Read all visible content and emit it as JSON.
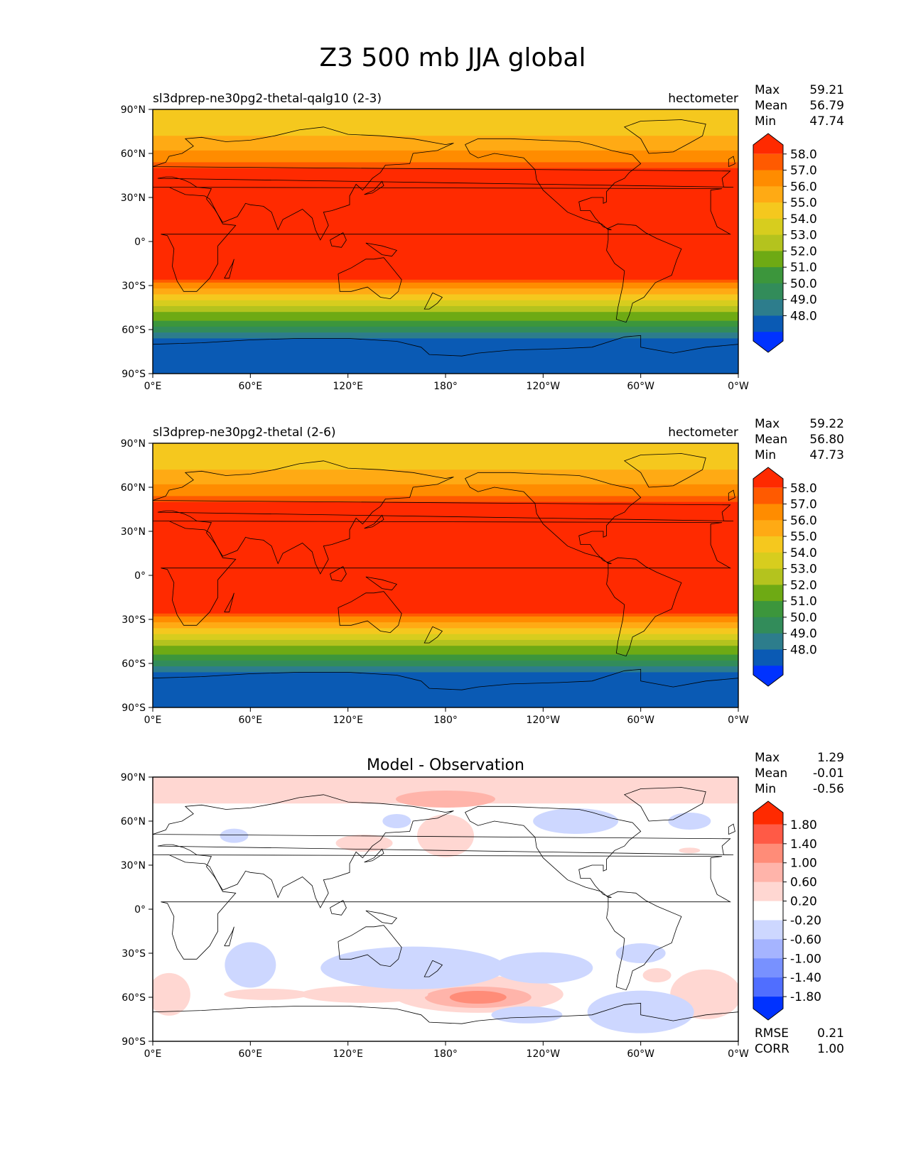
{
  "figure": {
    "title": "Z3 500 mb JJA global"
  },
  "axes": {
    "lat_ticks": [
      "90°N",
      "60°N",
      "30°N",
      "0°",
      "30°S",
      "60°S",
      "90°S"
    ],
    "lon_ticks": [
      "0°E",
      "60°E",
      "120°E",
      "180°",
      "120°W",
      "60°W",
      "0°W"
    ]
  },
  "panels": [
    {
      "id": "test",
      "left_title": "sl3dprep-ne30pg2-thetal-qalg10 (2-3)",
      "center_title": "",
      "right_title": "hectometer",
      "stats": {
        "Max": "59.21",
        "Mean": "56.79",
        "Min": "47.74"
      },
      "colorbar_labels": [
        "58.0",
        "57.0",
        "56.0",
        "55.0",
        "54.0",
        "53.0",
        "52.0",
        "51.0",
        "50.0",
        "49.0",
        "48.0"
      ],
      "colorbar_colors": [
        "#ff2a00",
        "#ff5a00",
        "#ff8c00",
        "#ffaa14",
        "#f5c81e",
        "#d7cd1e",
        "#b4c31e",
        "#6eaa14",
        "#3c963c",
        "#328c5a",
        "#2d7d8c",
        "#0a5ab4",
        "#0032ff"
      ],
      "footer": null
    },
    {
      "id": "reference",
      "left_title": "sl3dprep-ne30pg2-thetal (2-6)",
      "center_title": "",
      "right_title": "hectometer",
      "stats": {
        "Max": "59.22",
        "Mean": "56.80",
        "Min": "47.73"
      },
      "colorbar_labels": [
        "58.0",
        "57.0",
        "56.0",
        "55.0",
        "54.0",
        "53.0",
        "52.0",
        "51.0",
        "50.0",
        "49.0",
        "48.0"
      ],
      "colorbar_colors": [
        "#ff2a00",
        "#ff5a00",
        "#ff8c00",
        "#ffaa14",
        "#f5c81e",
        "#d7cd1e",
        "#b4c31e",
        "#6eaa14",
        "#3c963c",
        "#328c5a",
        "#2d7d8c",
        "#0a5ab4",
        "#0032ff"
      ],
      "footer": null
    },
    {
      "id": "difference",
      "left_title": "",
      "center_title": "Model - Observation",
      "right_title": "",
      "stats": {
        "Max": "1.29",
        "Mean": "-0.01",
        "Min": "-0.56"
      },
      "colorbar_labels": [
        "1.80",
        "1.40",
        "1.00",
        "0.60",
        "0.20",
        "-0.20",
        "-0.60",
        "-1.00",
        "-1.40",
        "-1.80"
      ],
      "colorbar_colors": [
        "#ff2a00",
        "#ff5a46",
        "#ff8c78",
        "#ffb4aa",
        "#ffd7d2",
        "#ffffff",
        "#cdd7ff",
        "#a5b4ff",
        "#7891ff",
        "#506eff",
        "#0032ff"
      ],
      "footer": {
        "RMSE": "0.21",
        "CORR": "1.00"
      }
    }
  ]
}
